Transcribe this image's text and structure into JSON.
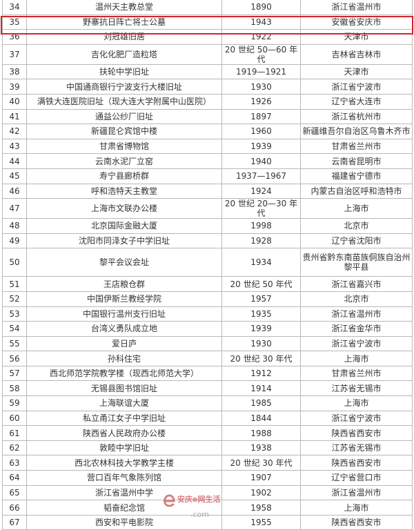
{
  "rows": [
    {
      "no": "34",
      "name": "温州天主教总堂",
      "year": "1890",
      "location": "浙江省温州市"
    },
    {
      "no": "35",
      "name": "野寨抗日阵亡将士公墓",
      "year": "1943",
      "location": "安徽省安庆市",
      "highlighted": true
    },
    {
      "no": "36",
      "name": "刘冠雄旧居",
      "year": "1922",
      "location": "天津市"
    },
    {
      "no": "37",
      "name": "吉化化肥厂造粒塔",
      "year": "20 世纪 50—60 年代",
      "location": "吉林省吉林市"
    },
    {
      "no": "38",
      "name": "扶轮中学旧址",
      "year": "1919—1921",
      "location": "天津市"
    },
    {
      "no": "39",
      "name": "中国通商银行宁波支行大楼旧址",
      "year": "1930",
      "location": "浙江省宁波市"
    },
    {
      "no": "40",
      "name": "满铁大连医院旧址（现大连大学附属中山医院）",
      "year": "1926",
      "location": "辽宁省大连市"
    },
    {
      "no": "41",
      "name": "通益公纱厂旧址",
      "year": "1897",
      "location": "浙江省杭州市"
    },
    {
      "no": "42",
      "name": "新疆昆仑宾馆中楼",
      "year": "1960",
      "location": "新疆维吾尔自治区乌鲁木齐市"
    },
    {
      "no": "43",
      "name": "甘肃省博物馆",
      "year": "1939",
      "location": "甘肃省兰州市"
    },
    {
      "no": "44",
      "name": "云南水泥厂立窑",
      "year": "1940",
      "location": "云南省昆明市"
    },
    {
      "no": "45",
      "name": "寿宁县廊桥群",
      "year": "1937—1967",
      "location": "福建省宁德市"
    },
    {
      "no": "46",
      "name": "呼和浩特天主教堂",
      "year": "1924",
      "location": "内蒙古自治区呼和浩特市"
    },
    {
      "no": "47",
      "name": "上海市文联办公楼",
      "year": "20 世纪 20—30 年代",
      "location": "上海市"
    },
    {
      "no": "48",
      "name": "北京国际金融大厦",
      "year": "1998",
      "location": "北京市"
    },
    {
      "no": "49",
      "name": "沈阳市同泽女子中学旧址",
      "year": "1928",
      "location": "辽宁省沈阳市"
    },
    {
      "no": "50",
      "name": "黎平会议会址",
      "year": "1934",
      "location": "贵州省黔东南苗族侗族自治州黎平县"
    },
    {
      "no": "51",
      "name": "王店粮仓群",
      "year": "20 世纪 50 年代",
      "location": "浙江省嘉兴市"
    },
    {
      "no": "52",
      "name": "中国伊斯兰教经学院",
      "year": "1957",
      "location": "北京市"
    },
    {
      "no": "53",
      "name": "中国银行温州支行旧址",
      "year": "1935",
      "location": "浙江省温州市"
    },
    {
      "no": "54",
      "name": "台湾义勇队成立地",
      "year": "1939",
      "location": "浙江省金华市"
    },
    {
      "no": "55",
      "name": "爱日庐",
      "year": "1930",
      "location": "浙江省宁波市"
    },
    {
      "no": "56",
      "name": "孙科住宅",
      "year": "20 世纪 30 年代",
      "location": "上海市"
    },
    {
      "no": "57",
      "name": "西北师范学院教学楼（现西北师范大学）",
      "year": "1912",
      "location": "甘肃省兰州市"
    },
    {
      "no": "58",
      "name": "无锡县图书馆旧址",
      "year": "1914",
      "location": "江苏省无锡市"
    },
    {
      "no": "59",
      "name": "上海联谊大厦",
      "year": "1985",
      "location": "上海市"
    },
    {
      "no": "60",
      "name": "私立甬江女子中学旧址",
      "year": "1844",
      "location": "浙江省宁波市"
    },
    {
      "no": "61",
      "name": "陕西省人民政府办公楼",
      "year": "1988",
      "location": "陕西省西安市"
    },
    {
      "no": "62",
      "name": "敦睦中学旧址",
      "year": "1938",
      "location": "江苏省无锡市"
    },
    {
      "no": "63",
      "name": "西北农林科技大学教学主楼",
      "year": "20 世纪 30 年代",
      "location": "陕西省西安市"
    },
    {
      "no": "64",
      "name": "营口百年气象陈列馆",
      "year": "1907",
      "location": "辽宁省营口市"
    },
    {
      "no": "65",
      "name": "浙江省温州中学",
      "year": "1902",
      "location": "浙江省温州市"
    },
    {
      "no": "66",
      "name": "韬奋纪念馆",
      "year": "1958",
      "location": "上海市"
    },
    {
      "no": "67",
      "name": "西安和平电影院",
      "year": "1955",
      "location": "陕西省西安市"
    }
  ],
  "highlight_color": "#d2232a",
  "watermark": {
    "logo": "e",
    "text": "安庆e网生活",
    "url_fragment": ".com"
  }
}
